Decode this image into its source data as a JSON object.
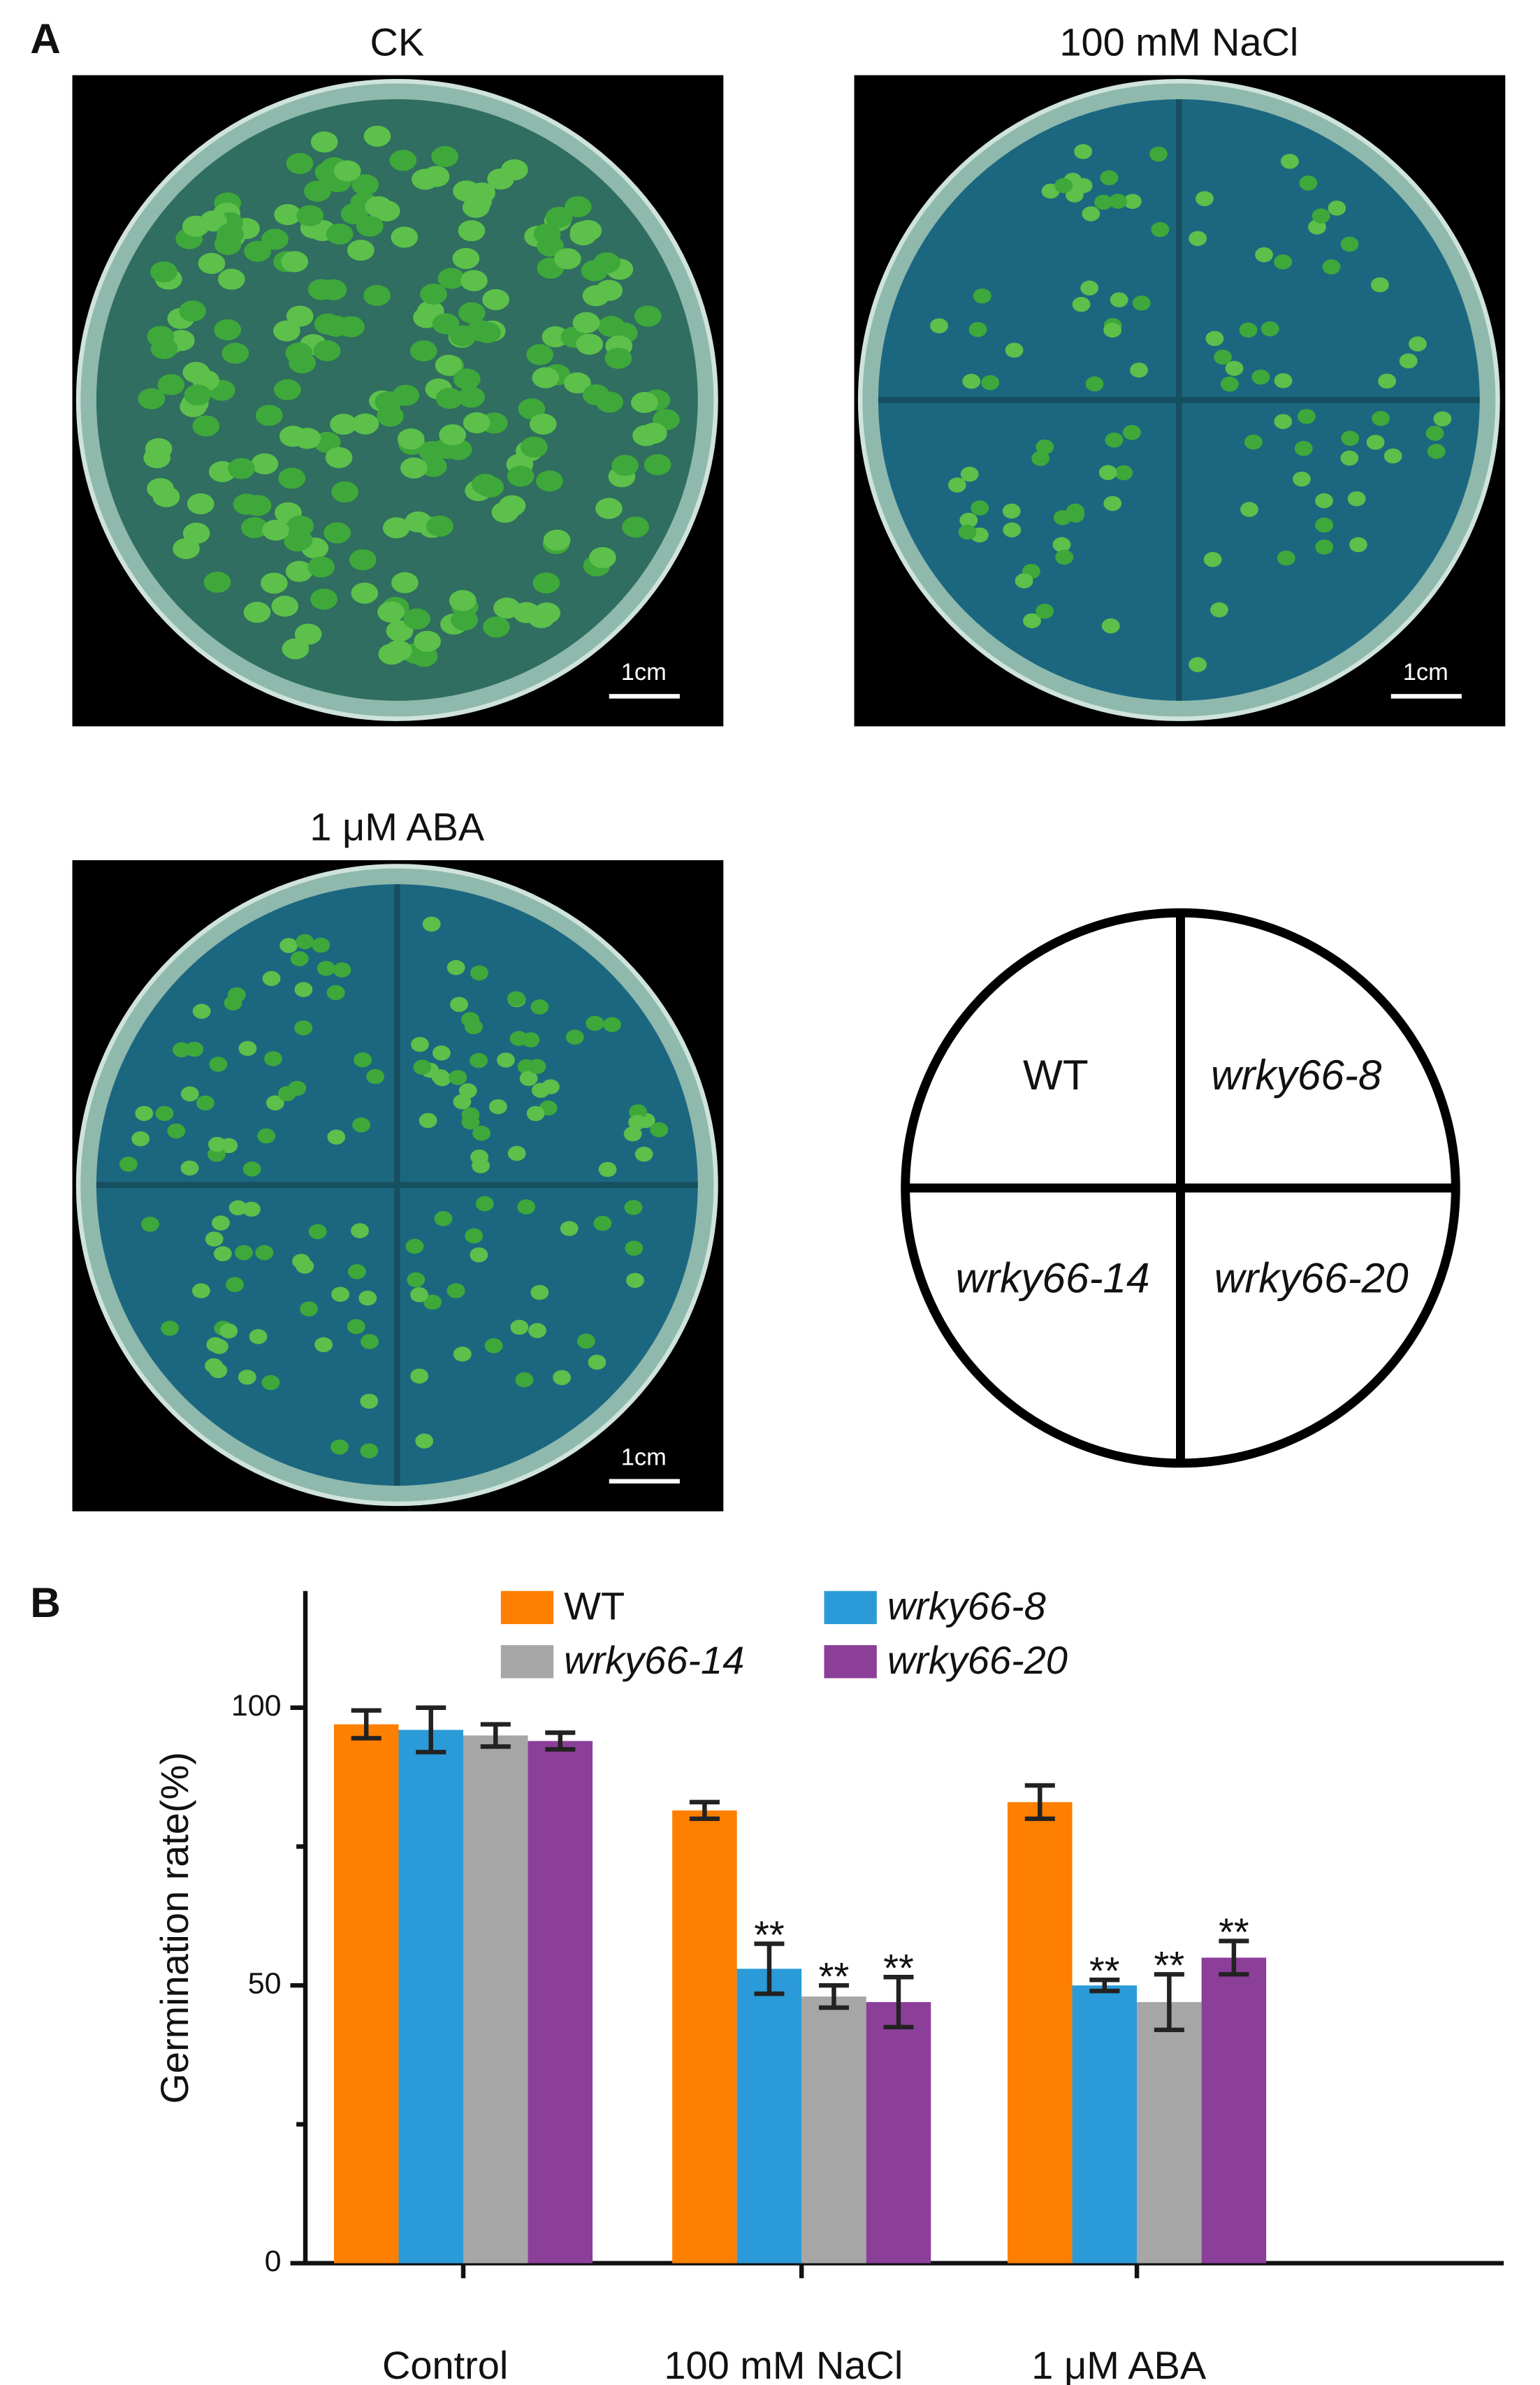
{
  "panel_a": {
    "label": "A",
    "photos": [
      {
        "title": "CK",
        "scale": "1cm"
      },
      {
        "title": "100 mM NaCl",
        "scale": "1cm"
      },
      {
        "title": "1 μM ABA",
        "scale": "1cm"
      }
    ],
    "diagram": {
      "quadrants": [
        "WT",
        "wrky66-8",
        "wrky66-14",
        "wrky66-20"
      ]
    }
  },
  "chart_data": {
    "type": "bar",
    "panel_label": "B",
    "y_label": "Germination rate(%)",
    "categories": [
      "Control",
      "100 mM NaCl",
      "1 μM ABA"
    ],
    "series": [
      {
        "name": "WT",
        "color": "#ff7f00",
        "italic": false,
        "values": [
          97,
          81.5,
          83
        ],
        "errors": [
          2.5,
          1.5,
          3
        ],
        "significance": [
          null,
          null,
          null
        ]
      },
      {
        "name": "wrky66-8",
        "color": "#2a9bd8",
        "italic": true,
        "values": [
          96,
          53,
          50
        ],
        "errors": [
          4,
          4.5,
          1
        ],
        "significance": [
          null,
          "**",
          "**"
        ]
      },
      {
        "name": "wrky66-14",
        "color": "#a6a6a6",
        "italic": true,
        "values": [
          95,
          48,
          47
        ],
        "errors": [
          2,
          2,
          5
        ],
        "significance": [
          null,
          "**",
          "**"
        ]
      },
      {
        "name": "wrky66-20",
        "color": "#8b3f99",
        "italic": true,
        "values": [
          94,
          47,
          55
        ],
        "errors": [
          1.5,
          4.5,
          3
        ],
        "significance": [
          null,
          "**",
          "**"
        ]
      }
    ],
    "ylim": [
      0,
      121
    ],
    "yticks": [
      0,
      50,
      100
    ],
    "minor_yticks": [
      25,
      75
    ]
  }
}
